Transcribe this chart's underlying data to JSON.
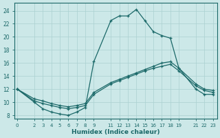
{
  "xlabel": "Humidex (Indice chaleur)",
  "bg_color": "#cce8e8",
  "line_color": "#1a6868",
  "grid_color": "#aad0d0",
  "xlim": [
    -0.3,
    23.5
  ],
  "ylim": [
    7.5,
    25.2
  ],
  "x_ticks": [
    0,
    2,
    3,
    4,
    5,
    6,
    7,
    8,
    9,
    11,
    12,
    13,
    14,
    15,
    16,
    17,
    18,
    19,
    21,
    22,
    23
  ],
  "y_ticks": [
    8,
    10,
    12,
    14,
    16,
    18,
    20,
    22,
    24
  ],
  "curve_top_x": [
    0,
    2,
    3,
    4,
    5,
    6,
    7,
    8,
    9,
    11,
    12,
    13,
    14,
    15,
    16,
    17,
    18,
    19,
    21,
    22,
    23
  ],
  "curve_top_y": [
    12.0,
    10.0,
    9.0,
    8.5,
    8.2,
    8.0,
    8.5,
    9.2,
    16.2,
    22.5,
    23.2,
    23.2,
    24.2,
    22.5,
    20.8,
    20.2,
    19.8,
    15.2,
    12.0,
    11.2,
    11.2
  ],
  "curve_mid_x": [
    0,
    2,
    3,
    4,
    5,
    6,
    7,
    8,
    9,
    11,
    12,
    13,
    14,
    15,
    16,
    17,
    18,
    19,
    21,
    22,
    23
  ],
  "curve_mid_y": [
    12.0,
    10.2,
    9.8,
    9.5,
    9.2,
    9.0,
    9.2,
    9.5,
    11.2,
    12.8,
    13.3,
    13.8,
    14.3,
    14.8,
    15.2,
    15.5,
    15.8,
    14.8,
    12.5,
    11.8,
    11.5
  ],
  "curve_bot_x": [
    0,
    2,
    3,
    4,
    5,
    6,
    7,
    8,
    9,
    11,
    12,
    13,
    14,
    15,
    16,
    17,
    18,
    19,
    21,
    22,
    23
  ],
  "curve_bot_y": [
    12.0,
    10.5,
    10.2,
    9.8,
    9.5,
    9.3,
    9.5,
    9.8,
    11.5,
    13.0,
    13.5,
    14.0,
    14.5,
    15.0,
    15.5,
    16.0,
    16.2,
    15.2,
    12.8,
    12.0,
    11.8
  ]
}
